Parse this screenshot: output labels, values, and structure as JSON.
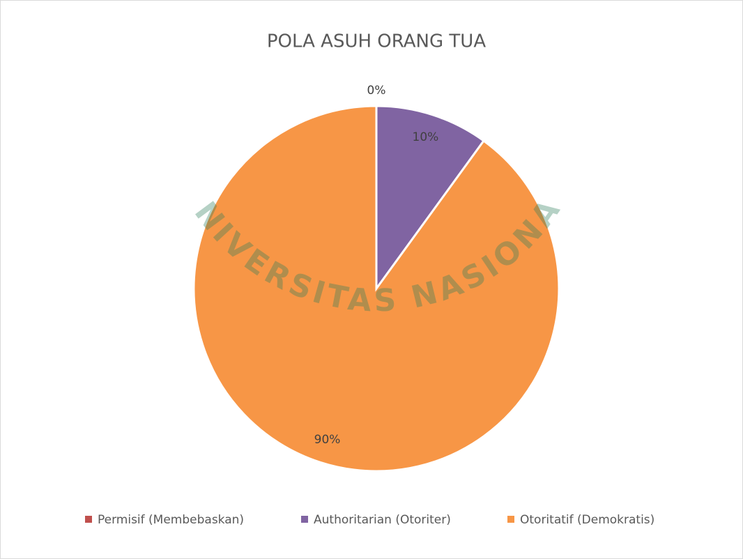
{
  "chart_data": {
    "type": "pie",
    "title": "POLA ASUH ORANG TUA",
    "categories": [
      "Permisif (Membebaskan)",
      "Authoritarian (Otoriter)",
      "Otoritatif (Demokratis)"
    ],
    "values": [
      0,
      10,
      90
    ],
    "value_labels": [
      "0%",
      "10%",
      "90%"
    ],
    "colors": [
      "#c0504d",
      "#8064a2",
      "#f79646"
    ],
    "legend": "bottom",
    "watermark": "UNIVERSITAS NASIONAL"
  }
}
